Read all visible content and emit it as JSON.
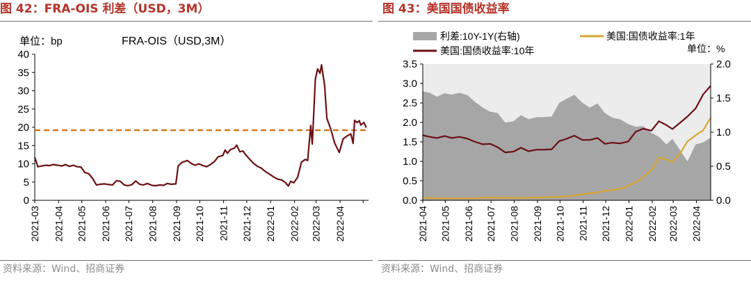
{
  "left": {
    "figure_title": "图 42：FRA-OIS 利差（USD，3M）",
    "source": "资料来源：Wind、招商证券",
    "chart_data": {
      "type": "line",
      "title": "FRA-OIS（USD,3M）",
      "unit_label": "单位：bp",
      "ylim": [
        0,
        40
      ],
      "yticks": [
        0,
        5,
        10,
        15,
        20,
        25,
        30,
        35,
        40
      ],
      "xlim": [
        "2021-03-01",
        "2022-05-08"
      ],
      "x_tick_labels": [
        "2021-03",
        "2021-04",
        "2021-05",
        "2021-06",
        "2021-07",
        "2021-08",
        "2021-09",
        "2021-10",
        "2021-11",
        "2021-12",
        "2022-01",
        "2022-02",
        "2022-03",
        "2022-04"
      ],
      "reference_line": {
        "value": 19.2,
        "color": "#cc6a00",
        "style": "dashed"
      },
      "series": [
        {
          "color": "#6b0f12",
          "points": [
            [
              "2021-03-01",
              11.8
            ],
            [
              "2021-03-05",
              9.2
            ],
            [
              "2021-03-10",
              9.4
            ],
            [
              "2021-03-15",
              9.6
            ],
            [
              "2021-03-20",
              9.5
            ],
            [
              "2021-03-25",
              9.8
            ],
            [
              "2021-03-31",
              9.6
            ],
            [
              "2021-04-05",
              9.4
            ],
            [
              "2021-04-10",
              9.8
            ],
            [
              "2021-04-15",
              9.3
            ],
            [
              "2021-04-20",
              9.6
            ],
            [
              "2021-04-25",
              9.2
            ],
            [
              "2021-04-30",
              9.1
            ],
            [
              "2021-05-05",
              7.6
            ],
            [
              "2021-05-10",
              7.3
            ],
            [
              "2021-05-15",
              6.0
            ],
            [
              "2021-05-20",
              4.2
            ],
            [
              "2021-05-25",
              4.4
            ],
            [
              "2021-05-31",
              4.5
            ],
            [
              "2021-06-05",
              4.3
            ],
            [
              "2021-06-10",
              4.2
            ],
            [
              "2021-06-15",
              5.4
            ],
            [
              "2021-06-20",
              5.2
            ],
            [
              "2021-06-25",
              4.2
            ],
            [
              "2021-06-30",
              4.0
            ],
            [
              "2021-07-05",
              4.3
            ],
            [
              "2021-07-10",
              5.3
            ],
            [
              "2021-07-15",
              4.4
            ],
            [
              "2021-07-20",
              4.2
            ],
            [
              "2021-07-25",
              4.6
            ],
            [
              "2021-07-31",
              4.1
            ],
            [
              "2021-08-05",
              4.0
            ],
            [
              "2021-08-10",
              4.2
            ],
            [
              "2021-08-15",
              4.1
            ],
            [
              "2021-08-20",
              4.6
            ],
            [
              "2021-08-25",
              4.4
            ],
            [
              "2021-08-31",
              4.5
            ],
            [
              "2021-09-03",
              9.4
            ],
            [
              "2021-09-08",
              10.4
            ],
            [
              "2021-09-15",
              10.9
            ],
            [
              "2021-09-20",
              10.1
            ],
            [
              "2021-09-25",
              9.6
            ],
            [
              "2021-09-30",
              10.0
            ],
            [
              "2021-10-05",
              9.5
            ],
            [
              "2021-10-10",
              9.2
            ],
            [
              "2021-10-15",
              9.8
            ],
            [
              "2021-10-20",
              10.6
            ],
            [
              "2021-10-25",
              11.9
            ],
            [
              "2021-10-31",
              12.3
            ],
            [
              "2021-11-03",
              13.8
            ],
            [
              "2021-11-06",
              12.9
            ],
            [
              "2021-11-10",
              13.9
            ],
            [
              "2021-11-15",
              14.3
            ],
            [
              "2021-11-18",
              15.1
            ],
            [
              "2021-11-22",
              13.3
            ],
            [
              "2021-11-26",
              13.5
            ],
            [
              "2021-11-30",
              12.4
            ],
            [
              "2021-12-05",
              11.2
            ],
            [
              "2021-12-10",
              10.1
            ],
            [
              "2021-12-15",
              9.3
            ],
            [
              "2021-12-20",
              8.8
            ],
            [
              "2021-12-25",
              7.9
            ],
            [
              "2021-12-31",
              7.1
            ],
            [
              "2022-01-05",
              6.4
            ],
            [
              "2022-01-10",
              5.8
            ],
            [
              "2022-01-15",
              5.6
            ],
            [
              "2022-01-20",
              4.9
            ],
            [
              "2022-01-24",
              3.9
            ],
            [
              "2022-01-27",
              5.2
            ],
            [
              "2022-01-31",
              4.8
            ],
            [
              "2022-02-05",
              6.3
            ],
            [
              "2022-02-10",
              10.5
            ],
            [
              "2022-02-15",
              11.2
            ],
            [
              "2022-02-18",
              10.9
            ],
            [
              "2022-02-22",
              20.5
            ],
            [
              "2022-02-24",
              15.4
            ],
            [
              "2022-02-28",
              33.2
            ],
            [
              "2022-03-03",
              36.0
            ],
            [
              "2022-03-06",
              34.8
            ],
            [
              "2022-03-08",
              37.1
            ],
            [
              "2022-03-12",
              31.5
            ],
            [
              "2022-03-15",
              22.4
            ],
            [
              "2022-03-20",
              19.5
            ],
            [
              "2022-03-25",
              15.7
            ],
            [
              "2022-03-31",
              13.1
            ],
            [
              "2022-04-05",
              16.8
            ],
            [
              "2022-04-10",
              17.6
            ],
            [
              "2022-04-15",
              18.2
            ],
            [
              "2022-04-18",
              15.6
            ],
            [
              "2022-04-20",
              21.9
            ],
            [
              "2022-04-23",
              21.3
            ],
            [
              "2022-04-26",
              21.8
            ],
            [
              "2022-04-28",
              20.6
            ],
            [
              "2022-05-02",
              21.3
            ],
            [
              "2022-05-05",
              19.9
            ]
          ]
        }
      ]
    }
  },
  "right": {
    "figure_title": "图 43：美国国债收益率",
    "source": "资料来源：Wind、招商证券",
    "chart_data": {
      "type": "area",
      "unit_label": "单位：%",
      "left_ylim": [
        0,
        3.5
      ],
      "left_yticks": [
        0.0,
        0.5,
        1.0,
        1.5,
        2.0,
        2.5,
        3.0,
        3.5
      ],
      "right_ylim": [
        0,
        2.0
      ],
      "right_yticks": [
        0.0,
        0.5,
        1.0,
        1.5,
        2.0
      ],
      "xlim": [
        "2021-04-01",
        "2022-04-20"
      ],
      "x_tick_labels": [
        "2021-04",
        "2021-05",
        "2021-06",
        "2021-07",
        "2021-08",
        "2021-09",
        "2021-10",
        "2021-11",
        "2021-12",
        "2022-01",
        "2022-02",
        "2022-03",
        "2022-04"
      ],
      "legend": [
        "利差:10Y-1Y(右轴)",
        "美国:国债收益率:1年",
        "美国:国债收益率:10年"
      ],
      "series": [
        {
          "name": "利差:10Y-1Y(右轴)",
          "type": "area",
          "axis": "right",
          "color": "#a6a6a6",
          "points": [
            [
              "2021-04-01",
              1.6
            ],
            [
              "2021-04-10",
              1.58
            ],
            [
              "2021-04-20",
              1.52
            ],
            [
              "2021-04-30",
              1.57
            ],
            [
              "2021-05-10",
              1.55
            ],
            [
              "2021-05-20",
              1.58
            ],
            [
              "2021-05-31",
              1.54
            ],
            [
              "2021-06-10",
              1.44
            ],
            [
              "2021-06-20",
              1.36
            ],
            [
              "2021-06-30",
              1.3
            ],
            [
              "2021-07-10",
              1.28
            ],
            [
              "2021-07-20",
              1.14
            ],
            [
              "2021-07-31",
              1.16
            ],
            [
              "2021-08-10",
              1.25
            ],
            [
              "2021-08-20",
              1.19
            ],
            [
              "2021-08-31",
              1.22
            ],
            [
              "2021-09-10",
              1.22
            ],
            [
              "2021-09-20",
              1.23
            ],
            [
              "2021-09-30",
              1.43
            ],
            [
              "2021-10-10",
              1.49
            ],
            [
              "2021-10-20",
              1.55
            ],
            [
              "2021-10-31",
              1.43
            ],
            [
              "2021-11-10",
              1.36
            ],
            [
              "2021-11-20",
              1.42
            ],
            [
              "2021-11-30",
              1.28
            ],
            [
              "2021-12-10",
              1.21
            ],
            [
              "2021-12-20",
              1.19
            ],
            [
              "2021-12-31",
              1.12
            ],
            [
              "2022-01-10",
              1.08
            ],
            [
              "2022-01-20",
              1.09
            ],
            [
              "2022-01-31",
              0.99
            ],
            [
              "2022-02-10",
              0.93
            ],
            [
              "2022-02-20",
              0.82
            ],
            [
              "2022-02-28",
              0.9
            ],
            [
              "2022-03-10",
              0.74
            ],
            [
              "2022-03-20",
              0.57
            ],
            [
              "2022-03-31",
              0.82
            ],
            [
              "2022-04-10",
              0.85
            ],
            [
              "2022-04-20",
              0.92
            ]
          ]
        },
        {
          "name": "美国:国债收益率:1年",
          "type": "line",
          "axis": "left",
          "color": "#d8a530",
          "points": [
            [
              "2021-04-01",
              0.06
            ],
            [
              "2021-05-01",
              0.05
            ],
            [
              "2021-06-01",
              0.05
            ],
            [
              "2021-07-01",
              0.07
            ],
            [
              "2021-08-01",
              0.06
            ],
            [
              "2021-09-01",
              0.07
            ],
            [
              "2021-10-01",
              0.09
            ],
            [
              "2021-10-20",
              0.12
            ],
            [
              "2021-11-01",
              0.16
            ],
            [
              "2021-11-20",
              0.2
            ],
            [
              "2021-12-01",
              0.25
            ],
            [
              "2021-12-20",
              0.29
            ],
            [
              "2022-01-01",
              0.38
            ],
            [
              "2022-01-15",
              0.52
            ],
            [
              "2022-02-01",
              0.8
            ],
            [
              "2022-02-10",
              1.1
            ],
            [
              "2022-02-20",
              1.05
            ],
            [
              "2022-02-28",
              0.98
            ],
            [
              "2022-03-10",
              1.2
            ],
            [
              "2022-03-20",
              1.51
            ],
            [
              "2022-03-31",
              1.67
            ],
            [
              "2022-04-10",
              1.8
            ],
            [
              "2022-04-20",
              2.12
            ]
          ]
        },
        {
          "name": "美国:国债收益率:10年",
          "type": "line",
          "axis": "left",
          "color": "#6b0f12",
          "points": [
            [
              "2021-04-01",
              1.67
            ],
            [
              "2021-04-10",
              1.63
            ],
            [
              "2021-04-20",
              1.6
            ],
            [
              "2021-04-30",
              1.65
            ],
            [
              "2021-05-10",
              1.6
            ],
            [
              "2021-05-20",
              1.63
            ],
            [
              "2021-05-31",
              1.58
            ],
            [
              "2021-06-10",
              1.5
            ],
            [
              "2021-06-20",
              1.44
            ],
            [
              "2021-06-30",
              1.45
            ],
            [
              "2021-07-10",
              1.36
            ],
            [
              "2021-07-20",
              1.23
            ],
            [
              "2021-07-31",
              1.25
            ],
            [
              "2021-08-10",
              1.35
            ],
            [
              "2021-08-20",
              1.26
            ],
            [
              "2021-08-31",
              1.3
            ],
            [
              "2021-09-10",
              1.3
            ],
            [
              "2021-09-20",
              1.31
            ],
            [
              "2021-09-30",
              1.52
            ],
            [
              "2021-10-10",
              1.58
            ],
            [
              "2021-10-20",
              1.66
            ],
            [
              "2021-10-31",
              1.55
            ],
            [
              "2021-11-10",
              1.55
            ],
            [
              "2021-11-20",
              1.6
            ],
            [
              "2021-11-30",
              1.45
            ],
            [
              "2021-12-10",
              1.48
            ],
            [
              "2021-12-20",
              1.46
            ],
            [
              "2021-12-31",
              1.51
            ],
            [
              "2022-01-10",
              1.76
            ],
            [
              "2022-01-20",
              1.84
            ],
            [
              "2022-01-31",
              1.79
            ],
            [
              "2022-02-10",
              2.03
            ],
            [
              "2022-02-20",
              1.93
            ],
            [
              "2022-02-28",
              1.83
            ],
            [
              "2022-03-10",
              1.99
            ],
            [
              "2022-03-20",
              2.15
            ],
            [
              "2022-03-31",
              2.36
            ],
            [
              "2022-04-10",
              2.72
            ],
            [
              "2022-04-20",
              2.94
            ]
          ]
        }
      ]
    }
  }
}
